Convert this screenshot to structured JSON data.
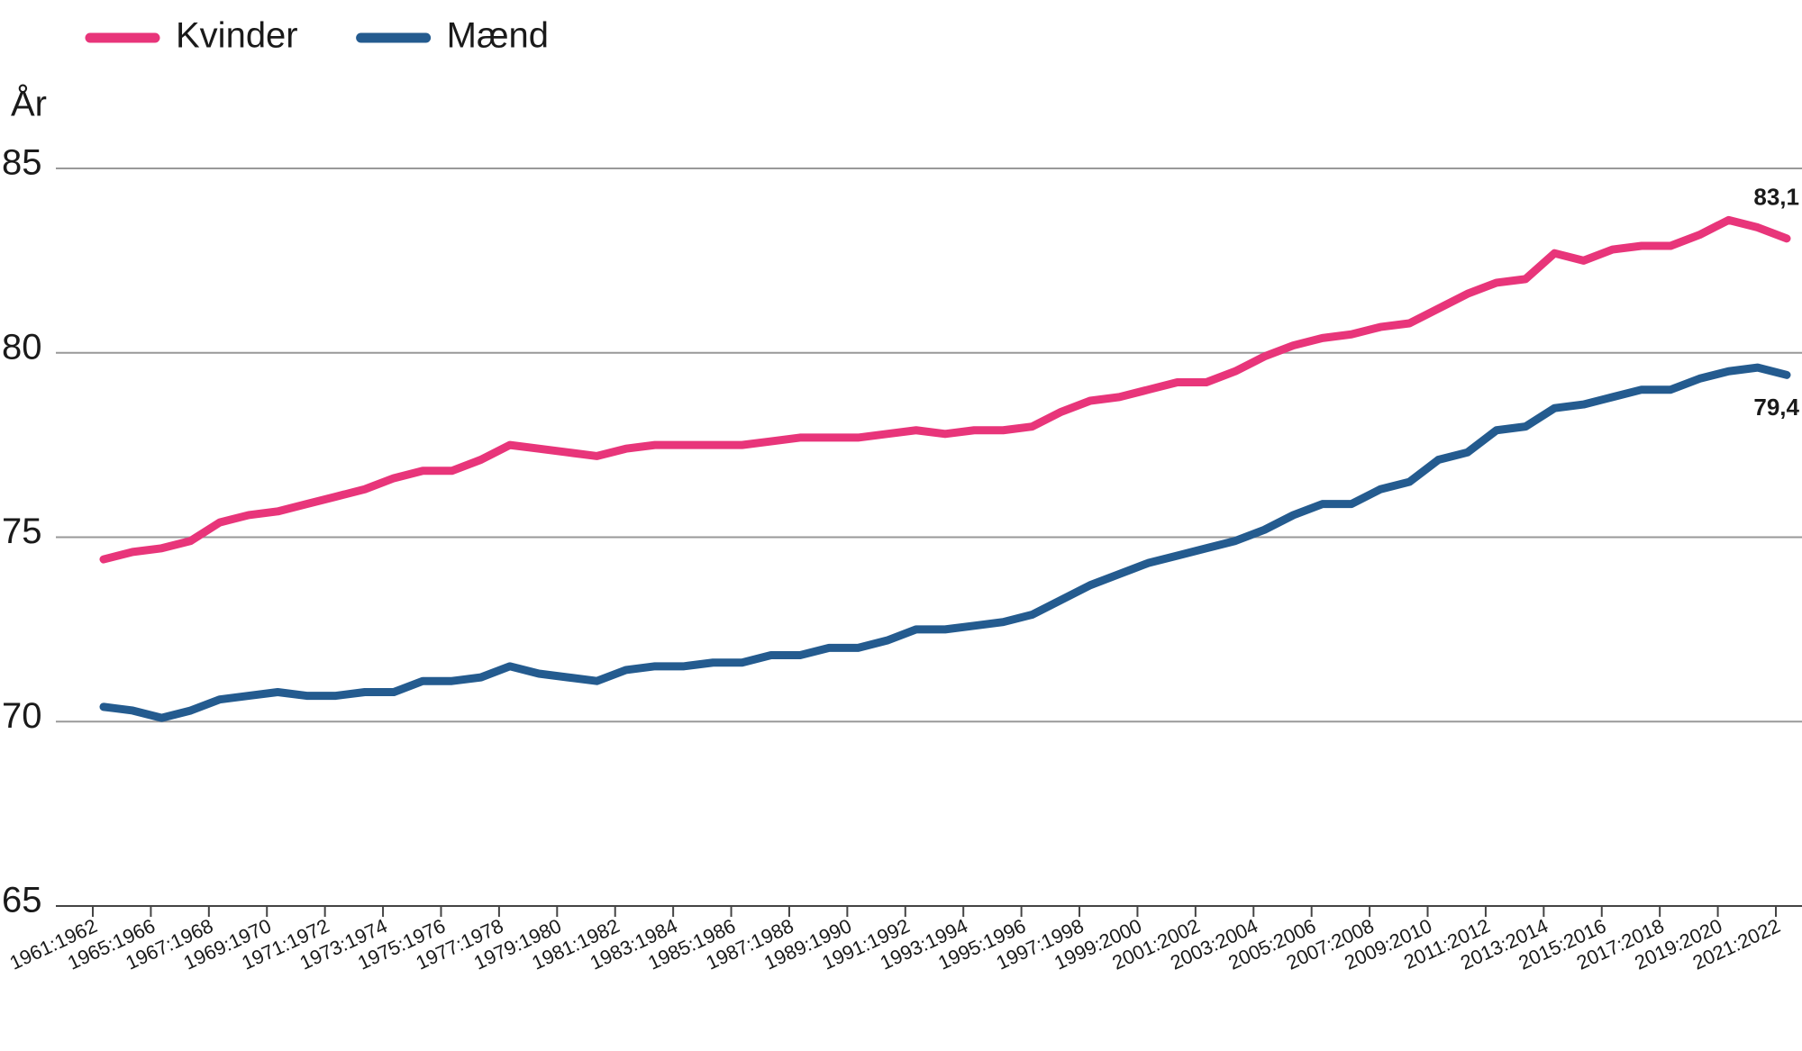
{
  "chart_data": {
    "type": "line",
    "y_label": "År",
    "categories": [
      "1961:1962",
      null,
      "1965:1966",
      null,
      "1967:1968",
      null,
      "1969:1970",
      null,
      "1971:1972",
      null,
      "1973:1974",
      null,
      "1975:1976",
      null,
      "1977:1978",
      null,
      "1979:1980",
      null,
      "1981:1982",
      null,
      "1983:1984",
      null,
      "1985:1986",
      null,
      "1987:1988",
      null,
      "1989:1990",
      null,
      "1991:1992",
      null,
      "1993:1994",
      null,
      "1995:1996",
      null,
      "1997:1998",
      null,
      "1999:2000",
      null,
      "2001:2002",
      null,
      "2003:2004",
      null,
      "2005:2006",
      null,
      "2007:2008",
      null,
      "2009:2010",
      null,
      "2011:2012",
      null,
      "2013:2014",
      null,
      "2015:2016",
      null,
      "2017:2018",
      null,
      "2019:2020",
      null,
      "2021:2022"
    ],
    "series": [
      {
        "name": "Kvinder",
        "color": "#e8357a",
        "values": [
          74.4,
          74.6,
          74.7,
          74.9,
          75.4,
          75.6,
          75.7,
          75.9,
          76.1,
          76.3,
          76.6,
          76.8,
          76.8,
          77.1,
          77.5,
          77.4,
          77.3,
          77.2,
          77.4,
          77.5,
          77.5,
          77.5,
          77.5,
          77.6,
          77.7,
          77.7,
          77.7,
          77.8,
          77.9,
          77.8,
          77.9,
          77.9,
          78.0,
          78.4,
          78.7,
          78.8,
          79.0,
          79.2,
          79.2,
          79.5,
          79.9,
          80.2,
          80.4,
          80.5,
          80.7,
          80.8,
          81.2,
          81.6,
          81.9,
          82.0,
          82.7,
          82.5,
          82.8,
          82.9,
          82.9,
          83.2,
          83.6,
          83.4,
          83.1
        ],
        "value_labels": [
          null,
          null,
          null,
          null,
          null,
          null,
          null,
          null,
          null,
          null,
          null,
          null,
          null,
          null,
          null,
          null,
          null,
          null,
          null,
          null,
          null,
          null,
          null,
          null,
          null,
          null,
          null,
          null,
          null,
          null,
          null,
          null,
          null,
          null,
          null,
          null,
          null,
          null,
          null,
          null,
          null,
          null,
          null,
          null,
          null,
          null,
          null,
          null,
          null,
          null,
          null,
          null,
          null,
          null,
          null,
          null,
          null,
          null,
          "83,1"
        ]
      },
      {
        "name": "Mænd",
        "color": "#245b8f",
        "values": [
          70.4,
          70.3,
          70.1,
          70.3,
          70.6,
          70.7,
          70.8,
          70.7,
          70.7,
          70.8,
          70.8,
          71.1,
          71.1,
          71.2,
          71.5,
          71.3,
          71.2,
          71.1,
          71.4,
          71.5,
          71.5,
          71.6,
          71.6,
          71.8,
          71.8,
          72.0,
          72.0,
          72.2,
          72.5,
          72.5,
          72.6,
          72.7,
          72.9,
          73.3,
          73.7,
          74.0,
          74.3,
          74.5,
          74.7,
          74.9,
          75.2,
          75.6,
          75.9,
          75.9,
          76.3,
          76.5,
          77.1,
          77.3,
          77.9,
          78.0,
          78.5,
          78.6,
          78.8,
          79.0,
          79.0,
          79.3,
          79.5,
          79.6,
          79.4
        ],
        "value_labels": [
          null,
          null,
          null,
          null,
          null,
          null,
          null,
          null,
          null,
          null,
          null,
          null,
          null,
          null,
          null,
          null,
          null,
          null,
          null,
          null,
          null,
          null,
          null,
          null,
          null,
          null,
          null,
          null,
          null,
          null,
          null,
          null,
          null,
          null,
          null,
          null,
          null,
          null,
          null,
          null,
          null,
          null,
          null,
          null,
          null,
          null,
          null,
          null,
          null,
          null,
          null,
          null,
          null,
          null,
          null,
          null,
          null,
          null,
          "79,4"
        ]
      }
    ],
    "ylim": [
      65,
      85
    ],
    "yticks": [
      65,
      70,
      75,
      80,
      85
    ],
    "grid": true,
    "legend": "top-left"
  }
}
